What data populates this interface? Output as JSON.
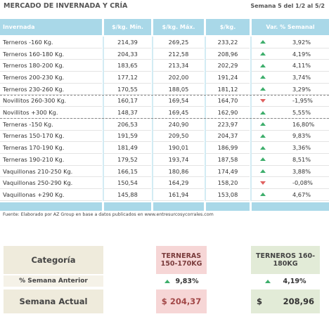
{
  "header": {
    "title": "MERCADO DE INVERNADA Y CRÍA",
    "week": "Semana 5 del 1/2 al 5/2"
  },
  "table": {
    "columns": [
      "Invernada",
      "$/kg. Mín.",
      "$/kg. Máx.",
      "$/kg.",
      "Var. % Semanal"
    ],
    "rows": [
      [
        "Terneros -160 Kg.",
        "214,39",
        "269,25",
        "233,22",
        "3,92%"
      ],
      [
        "Terneros 160-180 Kg.",
        "204,33",
        "212,58",
        "208,96",
        "4,19%"
      ],
      [
        "Terneros 180-200 Kg.",
        "183,65",
        "213,34",
        "202,29",
        "4,11%"
      ],
      [
        "Terneros 200-230 Kg.",
        "177,12",
        "202,00",
        "191,24",
        "3,74%"
      ],
      [
        "Terneros 230-260 Kg.",
        "170,55",
        "188,05",
        "181,12",
        "3,29%"
      ],
      [
        "Novillitos 260-300 Kg.",
        "160,17",
        "169,54",
        "164,70",
        "-1,95%"
      ],
      [
        "Novillitos +300 Kg.",
        "148,37",
        "169,45",
        "162,90",
        "5,55%"
      ],
      [
        "Terneras -150 Kg.",
        "206,53",
        "240,90",
        "223,97",
        "16,80%"
      ],
      [
        "Terneras 150-170 Kg.",
        "191,59",
        "209,50",
        "204,37",
        "9,83%"
      ],
      [
        "Terneras 170-190 Kg.",
        "181,49",
        "190,01",
        "186,99",
        "3,36%"
      ],
      [
        "Terneras 190-210 Kg.",
        "179,52",
        "193,74",
        "187,58",
        "8,51%"
      ],
      [
        "Vaquillonas 210-250 Kg.",
        "166,15",
        "180,86",
        "174,49",
        "3,88%"
      ],
      [
        "Vaquillonas 250-290 Kg.",
        "150,54",
        "164,29",
        "158,20",
        "-0,08%"
      ],
      [
        "Vaquillonas +290 Kg.",
        "145,88",
        "161,94",
        "153,08",
        "4,67%"
      ]
    ]
  },
  "footnote": "Fuente: Elaborado por AZ Group en base a datos publicados en www.entresurcosycorrales.com",
  "summary": {
    "labels": [
      "Categoría",
      "% Semana Anterior",
      "Semana Actual"
    ],
    "currency": "$",
    "cards": [
      {
        "name": "TERNERAS 150-170KG",
        "variation": "9,83%",
        "price": "204,37"
      },
      {
        "name": "TERNEROS 160-180KG",
        "variation": "4,19%",
        "price": "208,96"
      }
    ]
  }
}
